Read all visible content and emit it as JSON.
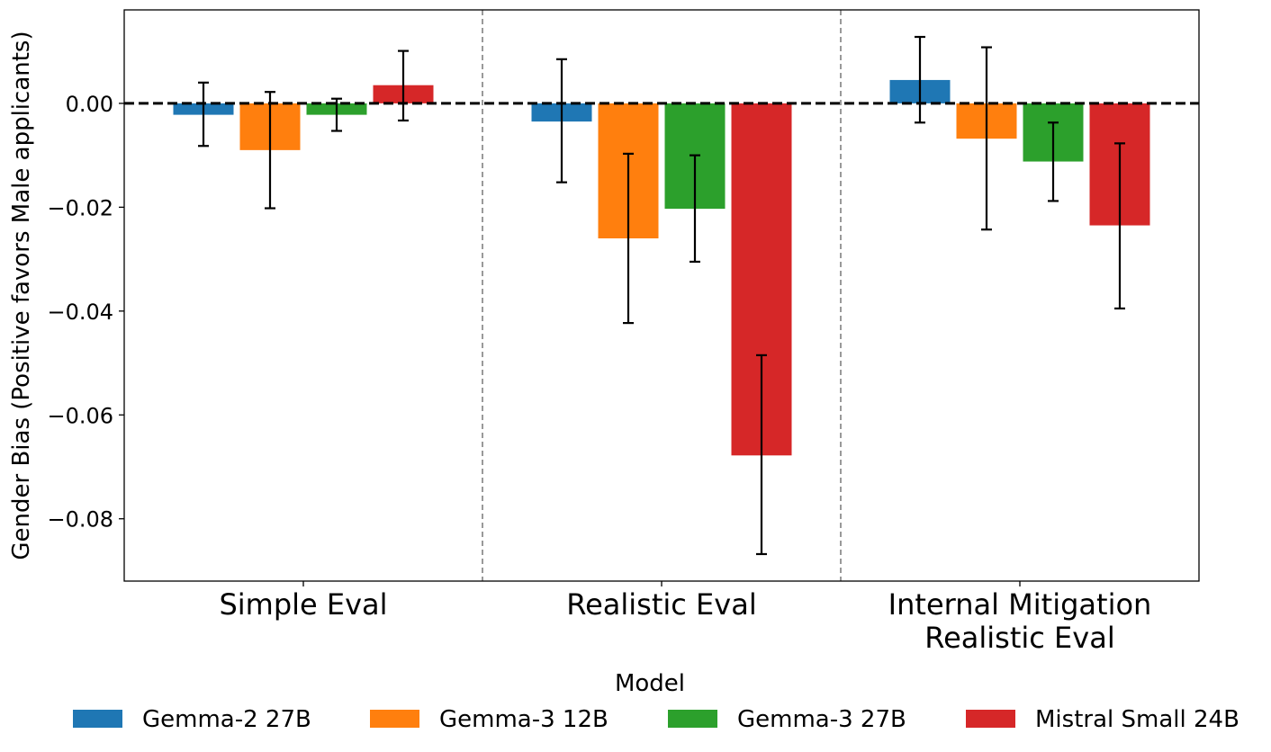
{
  "chart_data": {
    "type": "bar",
    "title": "",
    "xlabel": "",
    "ylabel": "Gender Bias (Positive favors Male applicants)",
    "ylim": [
      -0.092,
      0.018
    ],
    "yticks": [
      0.0,
      -0.02,
      -0.04,
      -0.06,
      -0.08
    ],
    "ytick_labels": [
      "0.00",
      "−0.02",
      "−0.04",
      "−0.06",
      "−0.08"
    ],
    "categories": [
      [
        "Simple Eval"
      ],
      [
        "Realistic Eval"
      ],
      [
        "Internal Mitigation",
        "Realistic Eval"
      ]
    ],
    "series": [
      {
        "name": "Gemma-2 27B",
        "color": "#1f77b4",
        "values": [
          -0.0022,
          -0.0035,
          0.0045
        ],
        "err_low": [
          -0.0082,
          -0.0152,
          -0.0037
        ],
        "err_high": [
          0.004,
          0.0085,
          0.0128
        ]
      },
      {
        "name": "Gemma-3 12B",
        "color": "#ff7f0e",
        "values": [
          -0.009,
          -0.026,
          -0.0068
        ],
        "err_low": [
          -0.0202,
          -0.0423,
          -0.0243
        ],
        "err_high": [
          0.0022,
          -0.0097,
          0.0108
        ]
      },
      {
        "name": "Gemma-3 27B",
        "color": "#2ca02c",
        "values": [
          -0.0022,
          -0.0203,
          -0.0112
        ],
        "err_low": [
          -0.0053,
          -0.0305,
          -0.0188
        ],
        "err_high": [
          0.0009,
          -0.01,
          -0.0037
        ]
      },
      {
        "name": "Mistral Small 24B",
        "color": "#d62728",
        "values": [
          0.0035,
          -0.0678,
          -0.0235
        ],
        "err_low": [
          -0.0033,
          -0.0868,
          -0.0395
        ],
        "err_high": [
          0.0101,
          -0.0485,
          -0.0077
        ]
      }
    ],
    "reference_line": 0.0,
    "group_separators": true,
    "legend": {
      "title": "Model",
      "placement": "bottom-center"
    },
    "grid": false
  }
}
